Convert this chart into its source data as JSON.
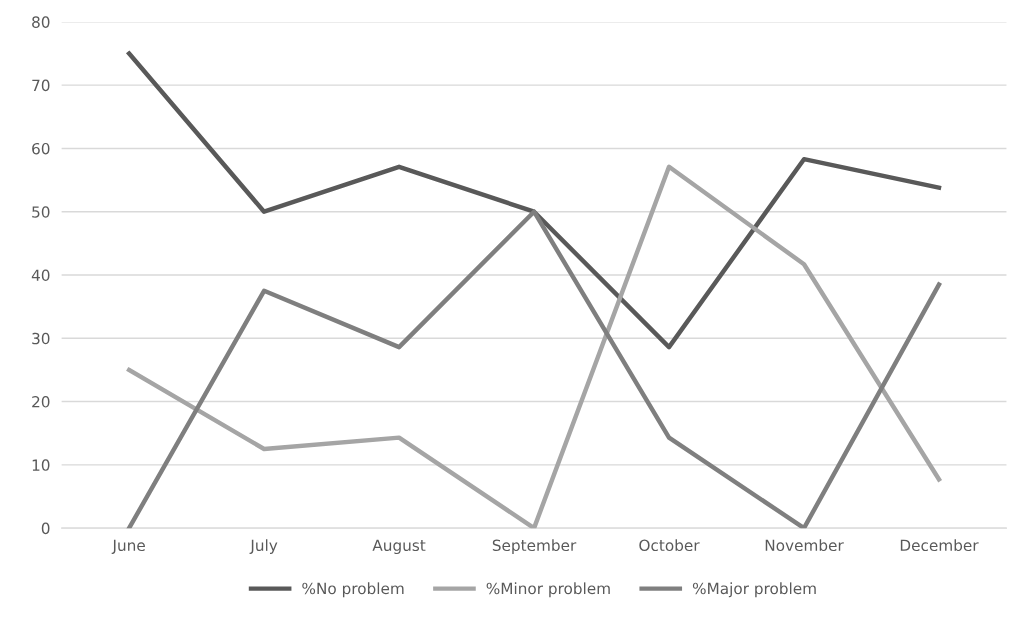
{
  "chart_data": {
    "type": "line",
    "categories": [
      "June",
      "July",
      "August",
      "September",
      "October",
      "November",
      "December"
    ],
    "series": [
      {
        "name": "%No problem",
        "color": "#595959",
        "values": [
          75,
          50,
          57.1,
          50,
          28.6,
          58.3,
          53.8
        ]
      },
      {
        "name": "%Minor problem",
        "color": "#a5a5a5",
        "values": [
          25,
          12.5,
          14.3,
          0,
          57.1,
          41.7,
          7.7
        ]
      },
      {
        "name": "%Major problem",
        "color": "#7f7f7f",
        "values": [
          0,
          37.5,
          28.6,
          50,
          14.3,
          0,
          38.5
        ]
      }
    ],
    "ylim": [
      0,
      80
    ],
    "yticks": [
      0,
      10,
      20,
      30,
      40,
      50,
      60,
      70,
      80
    ],
    "grid": "y",
    "legend": "bottom",
    "marker": "none",
    "line_style": "solid"
  }
}
